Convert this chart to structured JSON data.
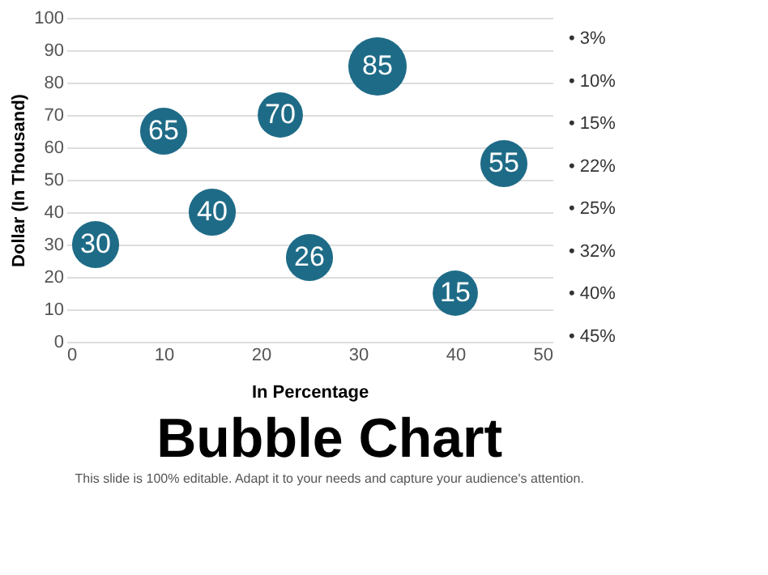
{
  "chart_data": {
    "type": "bubble",
    "title": "Bubble Chart",
    "xlabel": "In Percentage",
    "ylabel": "Dollar (In Thousand)",
    "x": [
      3,
      10,
      15,
      22,
      25,
      32,
      40,
      45
    ],
    "values": [
      30,
      65,
      40,
      70,
      26,
      85,
      15,
      55
    ],
    "sizes": [
      0.65,
      0.65,
      0.65,
      0.6,
      0.65,
      1,
      0.6,
      0.65
    ],
    "color": "#1e6b87",
    "data_labels": true,
    "xlim": [
      0,
      50
    ],
    "xticks": [
      0,
      10,
      20,
      30,
      40,
      50
    ],
    "ylim": [
      0,
      100
    ],
    "yticks": [
      0,
      10,
      20,
      30,
      40,
      50,
      60,
      70,
      80,
      90,
      100
    ],
    "grid": "y",
    "annotations": [
      "•   3%",
      "•   10%",
      "•   15%",
      "•   22%",
      "•   25%",
      "•   32%",
      "•   40%",
      "•   45%",
      "This slide is 100% editable. Adapt it to your needs and capture your audience's attention."
    ]
  }
}
